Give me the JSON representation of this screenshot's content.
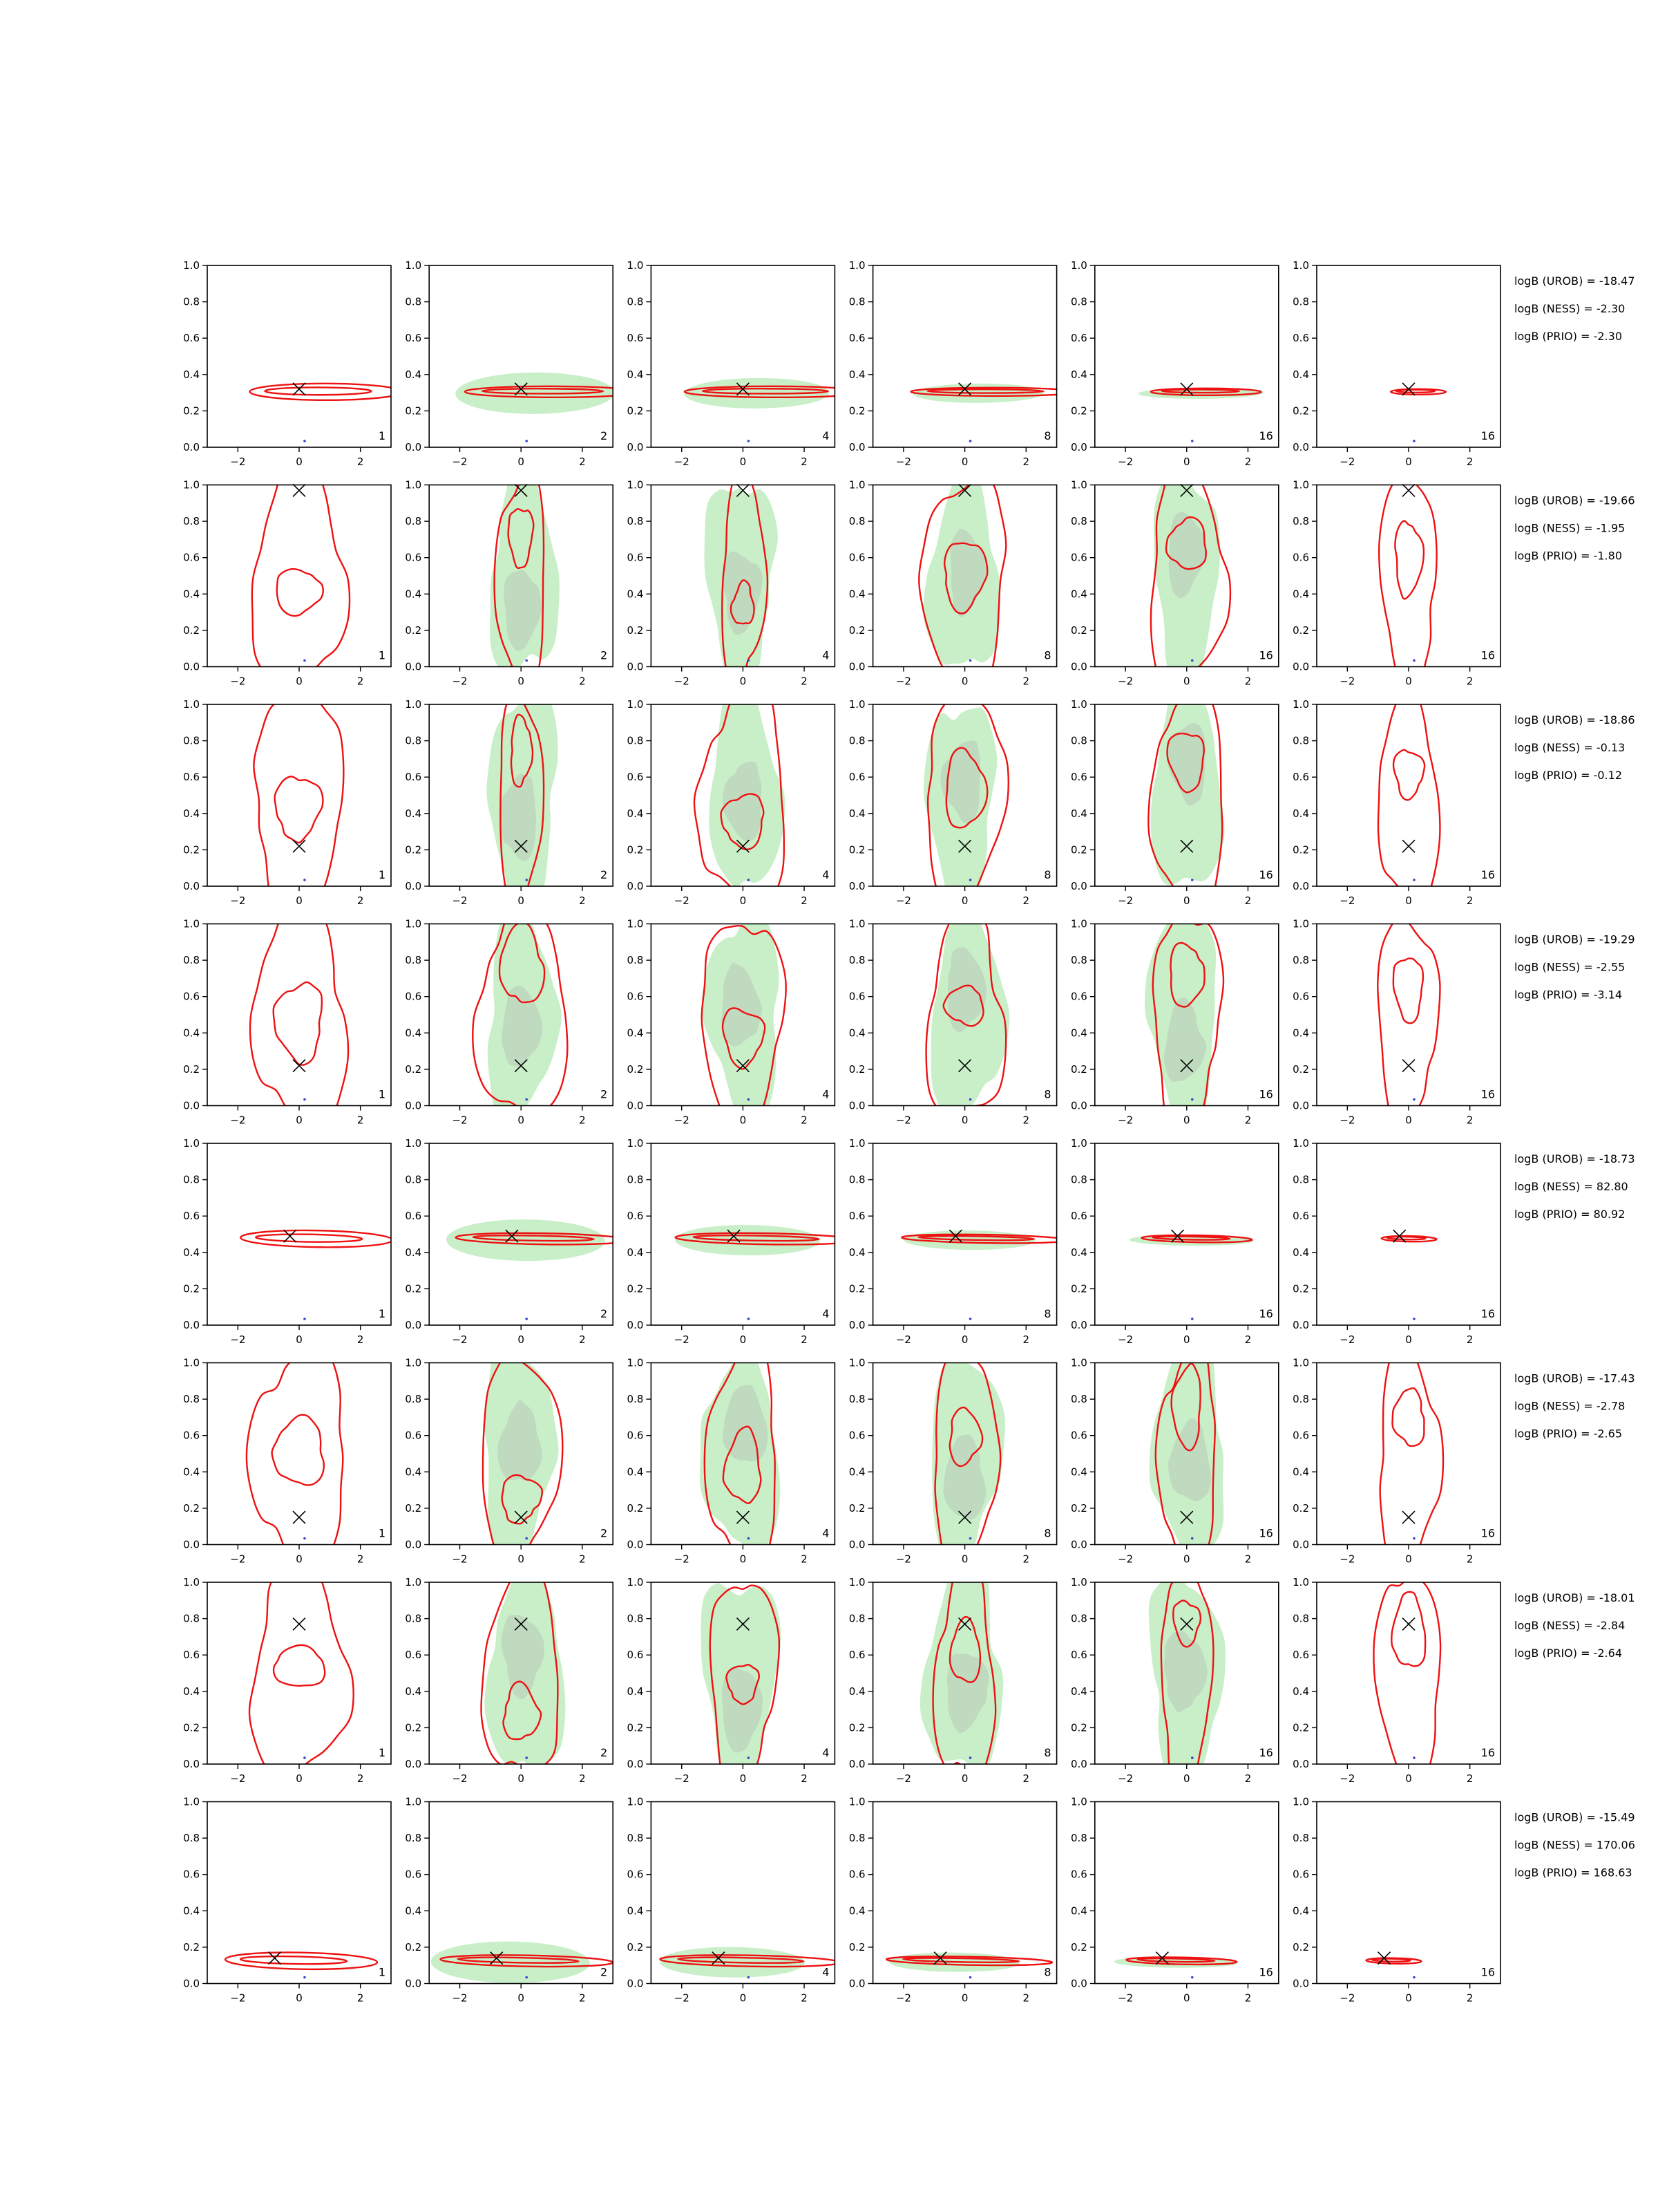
{
  "figure": {
    "colors": {
      "axes": "#000000",
      "contour": "#ee1111",
      "shade_light": "#c9efc9",
      "shade_dark": "#b8c9b8",
      "marker": "#000000",
      "truth_dot": "#3344cc"
    }
  },
  "chart_data": {
    "type": "contour",
    "layout": "8 rows x 6 columns of 2-D density contour panels with a 'logB' annotation column at the right",
    "x_range": [
      -3,
      3
    ],
    "y_range": [
      0,
      1
    ],
    "x_ticks": [
      "−2",
      "0",
      "2"
    ],
    "y_ticks": [
      "0.0",
      "0.2",
      "0.4",
      "0.6",
      "0.8",
      "1.0"
    ],
    "legend": "none",
    "grid": false,
    "panel_labels": [
      "1",
      "2",
      "4",
      "8",
      "16",
      "16"
    ],
    "rows": [
      {
        "marker": {
          "x": 0.0,
          "y": 0.32
        },
        "shape": "flat",
        "flat_slope": -0.02,
        "logB": [
          "logB (UROB) = -18.47",
          "logB (NESS) = -2.30",
          "logB (PRIO) = -2.30"
        ]
      },
      {
        "marker": {
          "x": 0.0,
          "y": 0.97
        },
        "shape": "tall",
        "logB": [
          "logB (UROB) = -19.66",
          "logB (NESS) = -1.95",
          "logB (PRIO) = -1.80"
        ]
      },
      {
        "marker": {
          "x": 0.0,
          "y": 0.22
        },
        "shape": "tall",
        "logB": [
          "logB (UROB) = -18.86",
          "logB (NESS) = -0.13",
          "logB (PRIO) = -0.12"
        ]
      },
      {
        "marker": {
          "x": 0.0,
          "y": 0.22
        },
        "shape": "tall",
        "logB": [
          "logB (UROB) = -19.29",
          "logB (NESS) = -2.55",
          "logB (PRIO) = -3.14"
        ]
      },
      {
        "marker": {
          "x": -0.3,
          "y": 0.49
        },
        "shape": "flat",
        "flat_slope": -0.013,
        "logB": [
          "logB (UROB) = -18.73",
          "logB (NESS) = 82.80",
          "logB (PRIO) = 80.92"
        ]
      },
      {
        "marker": {
          "x": 0.0,
          "y": 0.15
        },
        "shape": "tall",
        "logB": [
          "logB (UROB) = -17.43",
          "logB (NESS) = -2.78",
          "logB (PRIO) = -2.65"
        ]
      },
      {
        "marker": {
          "x": 0.0,
          "y": 0.77
        },
        "shape": "tall",
        "logB": [
          "logB (UROB) = -18.01",
          "logB (NESS) = -2.84",
          "logB (PRIO) = -2.64"
        ]
      },
      {
        "marker": {
          "x": -0.8,
          "y": 0.14
        },
        "shape": "flat",
        "flat_slope": -0.012,
        "logB": [
          "logB (UROB) = -15.49",
          "logB (NESS) = 170.06",
          "logB (PRIO) = 168.63"
        ]
      }
    ]
  }
}
